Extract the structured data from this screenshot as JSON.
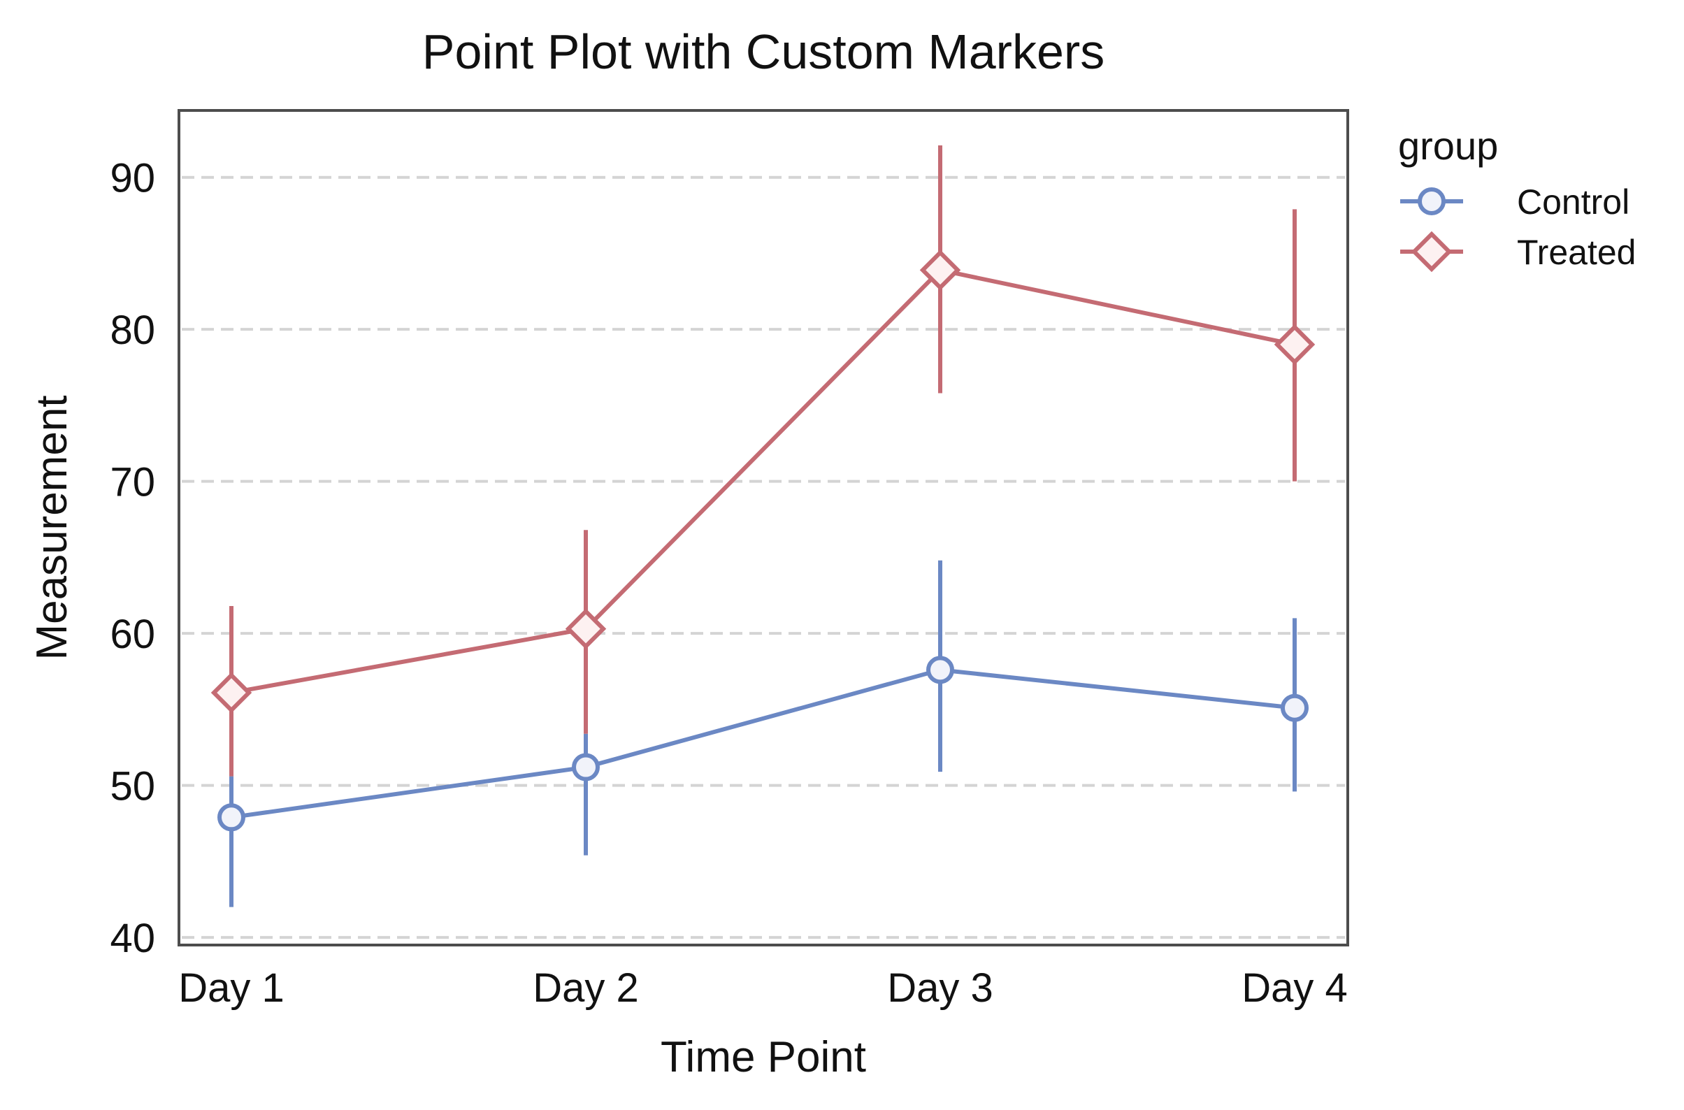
{
  "chart_data": {
    "type": "line",
    "title": "Point Plot with Custom Markers",
    "xlabel": "Time Point",
    "ylabel": "Measurement",
    "categories": [
      "Day 1",
      "Day 2",
      "Day 3",
      "Day 4"
    ],
    "ylim": [
      39.5,
      94.4
    ],
    "yticks": [
      40,
      50,
      60,
      70,
      80,
      90
    ],
    "grid": {
      "y": true,
      "style": "dashed"
    },
    "legend": {
      "title": "group",
      "placement": "outside-right-top"
    },
    "series": [
      {
        "name": "Control",
        "marker": "circle",
        "color": "#6b88c4",
        "values": [
          47.9,
          51.2,
          57.6,
          55.1
        ],
        "ci_low": [
          42.0,
          45.4,
          50.9,
          49.6
        ],
        "ci_high": [
          50.6,
          53.4,
          64.8,
          61.0
        ]
      },
      {
        "name": "Treated",
        "marker": "diamond",
        "color": "#c46b73",
        "values": [
          56.1,
          60.3,
          83.9,
          79.0
        ],
        "ci_low": [
          50.6,
          53.4,
          75.8,
          70.0
        ],
        "ci_high": [
          61.8,
          66.8,
          92.1,
          87.9
        ]
      }
    ]
  }
}
